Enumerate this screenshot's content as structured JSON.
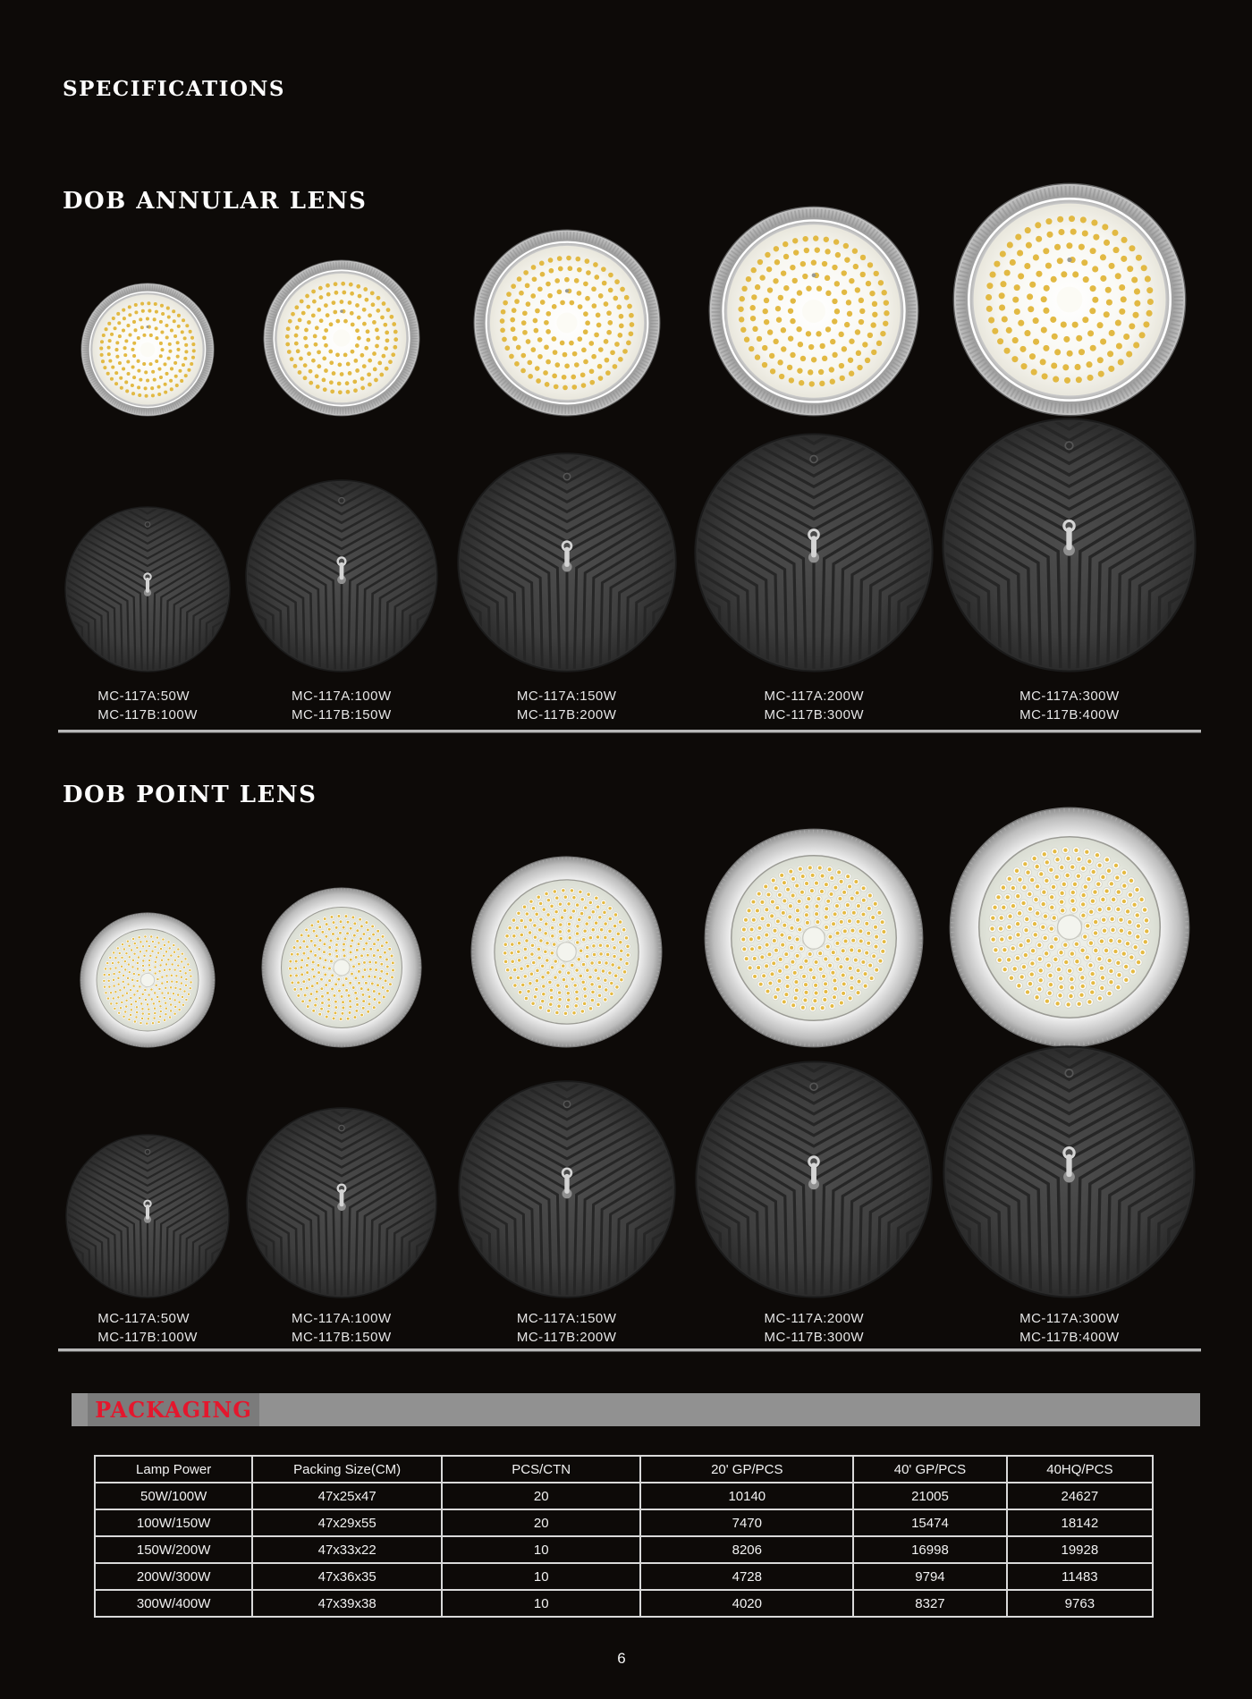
{
  "page": {
    "title": "SPECIFICATIONS",
    "page_number": "6"
  },
  "sections": [
    {
      "heading": "DOB ANNULAR LENS",
      "lens_type": "annular",
      "products": [
        {
          "model_a": "MC-117A:50W",
          "model_b": "MC-117B:100W"
        },
        {
          "model_a": "MC-117A:100W",
          "model_b": "MC-117B:150W"
        },
        {
          "model_a": "MC-117A:150W",
          "model_b": "MC-117B:200W"
        },
        {
          "model_a": "MC-117A:200W",
          "model_b": "MC-117B:300W"
        },
        {
          "model_a": "MC-117A:300W",
          "model_b": "MC-117B:400W"
        }
      ]
    },
    {
      "heading": "DOB POINT LENS",
      "lens_type": "point",
      "products": [
        {
          "model_a": "MC-117A:50W",
          "model_b": "MC-117B:100W"
        },
        {
          "model_a": "MC-117A:100W",
          "model_b": "MC-117B:150W"
        },
        {
          "model_a": "MC-117A:150W",
          "model_b": "MC-117B:200W"
        },
        {
          "model_a": "MC-117A:200W",
          "model_b": "MC-117B:300W"
        },
        {
          "model_a": "MC-117A:300W",
          "model_b": "MC-117B:400W"
        }
      ]
    }
  ],
  "packaging": {
    "banner_label": "PACKAGING",
    "accent_color": "#e4172d",
    "table": {
      "columns": [
        "Lamp Power",
        "Packing Size(CM)",
        "PCS/CTN",
        "20' GP/PCS",
        "40' GP/PCS",
        "40HQ/PCS"
      ],
      "rows": [
        [
          "50W/100W",
          "47x25x47",
          "20",
          "10140",
          "21005",
          "24627"
        ],
        [
          "100W/150W",
          "47x29x55",
          "20",
          "7470",
          "15474",
          "18142"
        ],
        [
          "150W/200W",
          "47x33x22",
          "10",
          "8206",
          "16998",
          "19928"
        ],
        [
          "200W/300W",
          "47x36x35",
          "10",
          "4728",
          "9794",
          "11483"
        ],
        [
          "300W/400W",
          "47x39x38",
          "10",
          "4020",
          "8327",
          "9763"
        ]
      ]
    }
  }
}
